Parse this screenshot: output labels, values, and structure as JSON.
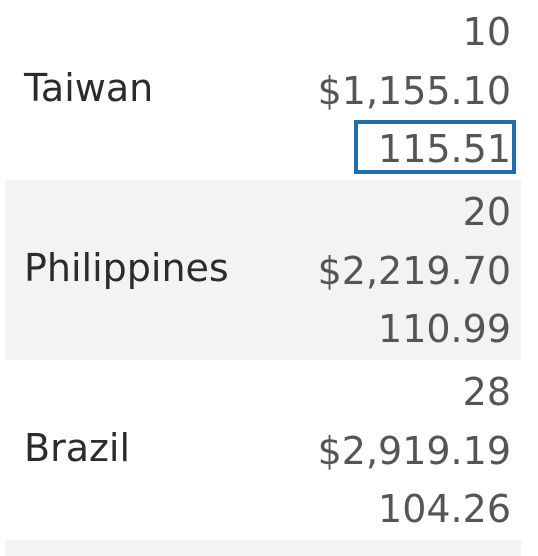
{
  "rows": [
    {
      "country": "Taiwan",
      "count": "10",
      "sales": "$1,155.10",
      "avg": "115.51"
    },
    {
      "country": "Philippines",
      "count": "20",
      "sales": "$2,219.70",
      "avg": "110.99"
    },
    {
      "country": "Brazil",
      "count": "28",
      "sales": "$2,919.19",
      "avg": "104.26"
    }
  ],
  "colors": {
    "row_alt_bg": "#f3f3f3",
    "selection_border": "#1f6db3",
    "label_text": "#2b2b2b",
    "value_text": "#555555"
  }
}
